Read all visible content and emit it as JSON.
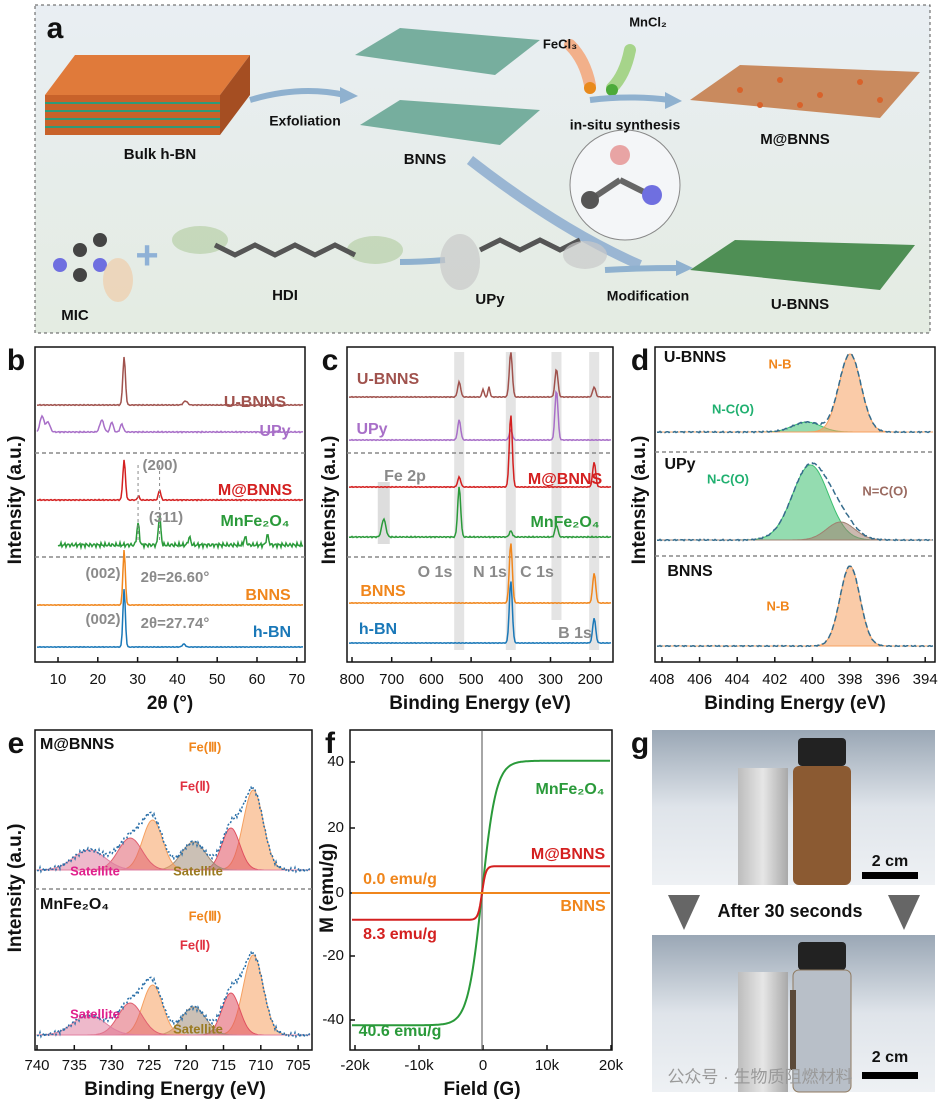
{
  "panel_a": {
    "label": "a",
    "bulk": "Bulk h-BN",
    "exfoliation": "Exfoliation",
    "bnns": "BNNS",
    "fecl3": "FeCl₃",
    "mncl2": "MnCl₂",
    "synthesis": "in-situ synthesis",
    "mbnns": "M@BNNS",
    "mic": "MIC",
    "hdi": "HDI",
    "upy": "UPy",
    "modification": "Modification",
    "ubnns": "U-BNNS"
  },
  "panel_b": {
    "label": "b",
    "ylabel": "Intensity (a.u.)",
    "xlabel": "2θ (°)",
    "xticks": [
      10,
      20,
      30,
      40,
      50,
      60,
      70
    ],
    "traces": [
      "U-BNNS",
      "UPy",
      "M@BNNS",
      "MnFe₂O₄",
      "BNNS",
      "h-BN"
    ],
    "annotations": [
      "(200)",
      "(311)",
      "(002)",
      "2θ=26.60°",
      "(002)",
      "2θ=27.74°"
    ]
  },
  "panel_c": {
    "label": "c",
    "ylabel": "Intensity (a.u.)",
    "xlabel": "Binding Energy (eV)",
    "xticks": [
      800,
      700,
      600,
      500,
      400,
      300,
      200
    ],
    "traces": [
      "U-BNNS",
      "UPy",
      "M@BNNS",
      "MnFe₂O₄",
      "BNNS",
      "h-BN"
    ],
    "annotations": [
      "Fe 2p",
      "O 1s",
      "N 1s",
      "C 1s",
      "B 1s"
    ]
  },
  "panel_d": {
    "label": "d",
    "ylabel": "Intensity (a.u.)",
    "xlabel": "Binding Energy (eV)",
    "xticks": [
      408,
      406,
      404,
      402,
      400,
      398,
      396,
      394
    ],
    "samples": [
      "U-BNNS",
      "UPy",
      "BNNS"
    ],
    "annotations": [
      "N-B",
      "N-C(O)",
      "N-C(O)",
      "N=C(O)",
      "N-B"
    ]
  },
  "panel_e": {
    "label": "e",
    "ylabel": "Intensity (a.u.)",
    "xlabel": "Binding Energy (eV)",
    "xticks": [
      740,
      735,
      730,
      725,
      720,
      715,
      710,
      705
    ],
    "samples": [
      "M@BNNS",
      "MnFe₂O₄"
    ],
    "annotations": [
      "Fe(Ⅲ)",
      "Fe(Ⅱ)",
      "Satellite",
      "Satellite",
      "Fe(Ⅲ)",
      "Fe(Ⅱ)",
      "Satellite",
      "Satellite"
    ]
  },
  "panel_f": {
    "label": "f",
    "ylabel": "M (emu/g)",
    "xlabel": "Field (G)",
    "xticks": [
      "-20k",
      "-10k",
      0,
      "10k",
      "20k"
    ],
    "yticks": [
      40,
      20,
      0,
      -20,
      -40
    ],
    "traces": [
      "MnFe₂O₄",
      "M@BNNS",
      "BNNS"
    ],
    "annotations": [
      "0.0 emu/g",
      "8.3 emu/g",
      "40.6 emu/g"
    ]
  },
  "panel_g": {
    "label": "g",
    "caption": "After 30 seconds",
    "scale_bars": [
      "2 cm",
      "2 cm"
    ]
  },
  "watermark": "公众号 · 生物质阻燃材料"
}
